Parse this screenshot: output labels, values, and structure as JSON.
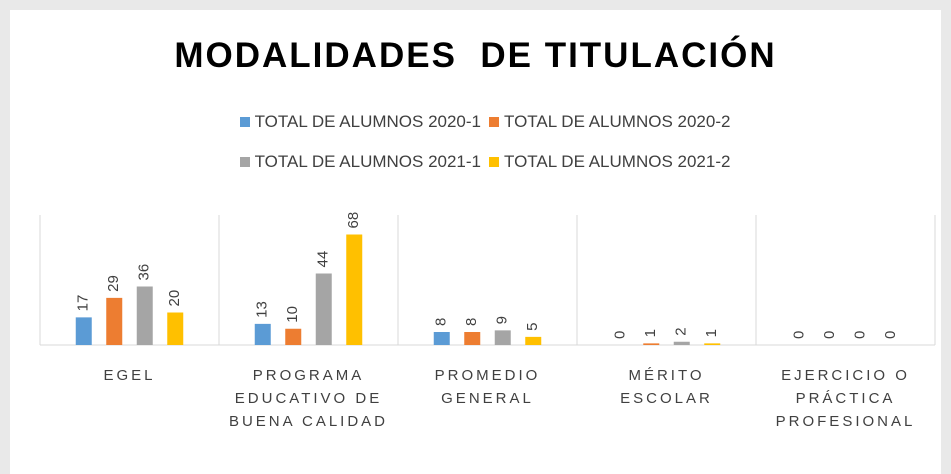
{
  "chart_data": {
    "type": "bar",
    "title": "MODALIDADES  DE TITULACIÓN",
    "categories": [
      "EGEL",
      "PROGRAMA EDUCATIVO DE BUENA CALIDAD",
      "PROMEDIO GENERAL",
      "MÉRITO ESCOLAR",
      "EJERCICIO O PRÁCTICA PROFESIONAL"
    ],
    "series": [
      {
        "name": "TOTAL DE ALUMNOS 2020-1",
        "color": "#5b9bd5",
        "values": [
          17,
          13,
          8,
          0,
          0
        ]
      },
      {
        "name": "TOTAL DE ALUMNOS 2020-2",
        "color": "#ed7d31",
        "values": [
          29,
          10,
          8,
          1,
          0
        ]
      },
      {
        "name": "TOTAL DE ALUMNOS 2021-1",
        "color": "#a5a5a5",
        "values": [
          36,
          44,
          9,
          2,
          0
        ]
      },
      {
        "name": "TOTAL DE ALUMNOS 2021-2",
        "color": "#ffc000",
        "values": [
          20,
          68,
          5,
          1,
          0
        ]
      }
    ],
    "ylim": [
      0,
      80
    ],
    "legend": "top"
  }
}
